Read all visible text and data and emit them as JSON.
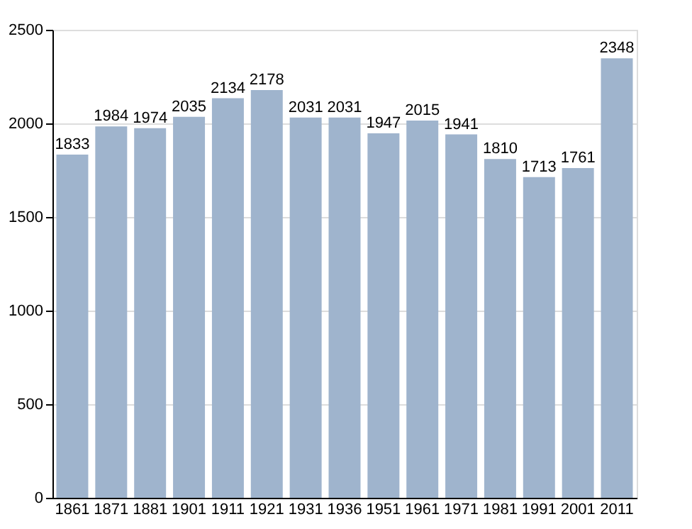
{
  "chart_data": {
    "type": "bar",
    "categories": [
      "1861",
      "1871",
      "1881",
      "1901",
      "1911",
      "1921",
      "1931",
      "1936",
      "1951",
      "1961",
      "1971",
      "1981",
      "1991",
      "2001",
      "2011"
    ],
    "values": [
      1833,
      1984,
      1974,
      2035,
      2134,
      2178,
      2031,
      2031,
      1947,
      2015,
      1941,
      1810,
      1713,
      1761,
      2348
    ],
    "color": "#9fb4cd",
    "ylim": [
      0,
      2500
    ],
    "yticks": [
      0,
      500,
      1000,
      1500,
      2000,
      2500
    ],
    "grid": "y",
    "data_labels": true
  }
}
